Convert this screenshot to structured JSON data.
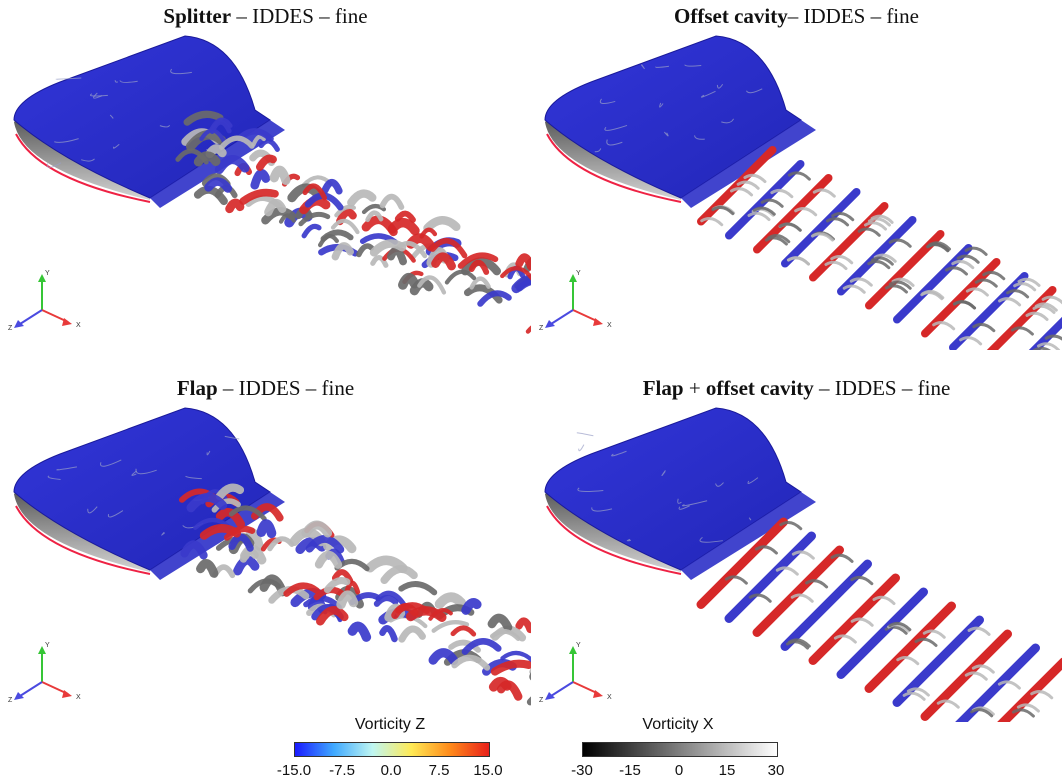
{
  "panels": [
    {
      "title_bold": "Splitter",
      "title_rest": " – IDDES –  fine",
      "pattern": "chaotic"
    },
    {
      "title_bold": "Offset  cavity",
      "title_rest": "– IDDES –  fine",
      "pattern": "rows"
    },
    {
      "title_bold": "Flap",
      "title_rest": " – IDDES –  fine",
      "pattern": "chaotic"
    },
    {
      "title_bold": "Flap",
      "title_mid": " + ",
      "title_bold2": "offset cavity",
      "title_rest": " – IDDES –  fine",
      "pattern": "clean-rows"
    }
  ],
  "axes_triad": {
    "y": "Y",
    "x": "X",
    "z": "Z"
  },
  "colorbars": {
    "z": {
      "title": "Vorticity Z",
      "ticks": [
        "-15.0",
        "-7.5",
        "0.0",
        "7.5",
        "15.0"
      ],
      "colors": [
        "#1a1aff",
        "#3fa9ff",
        "#bff6f2",
        "#ffea55",
        "#ff8a1a",
        "#e8201a"
      ]
    },
    "x": {
      "title": "Vorticity X",
      "ticks": [
        "-30",
        "-15",
        "0",
        "15",
        "30"
      ],
      "colors": [
        "#000000",
        "#ffffff"
      ]
    }
  },
  "colors": {
    "body_blue": "#2a2ecf",
    "body_edge": "#1a1a9a",
    "wing_grey": "#8a8a8a",
    "vortex_red": "#d62828",
    "vortex_blue": "#3a3acb",
    "vortex_grey": "#6a6a6a",
    "triad_x": "#e83a3a",
    "triad_y": "#36c636",
    "triad_z": "#4a4ae0"
  }
}
